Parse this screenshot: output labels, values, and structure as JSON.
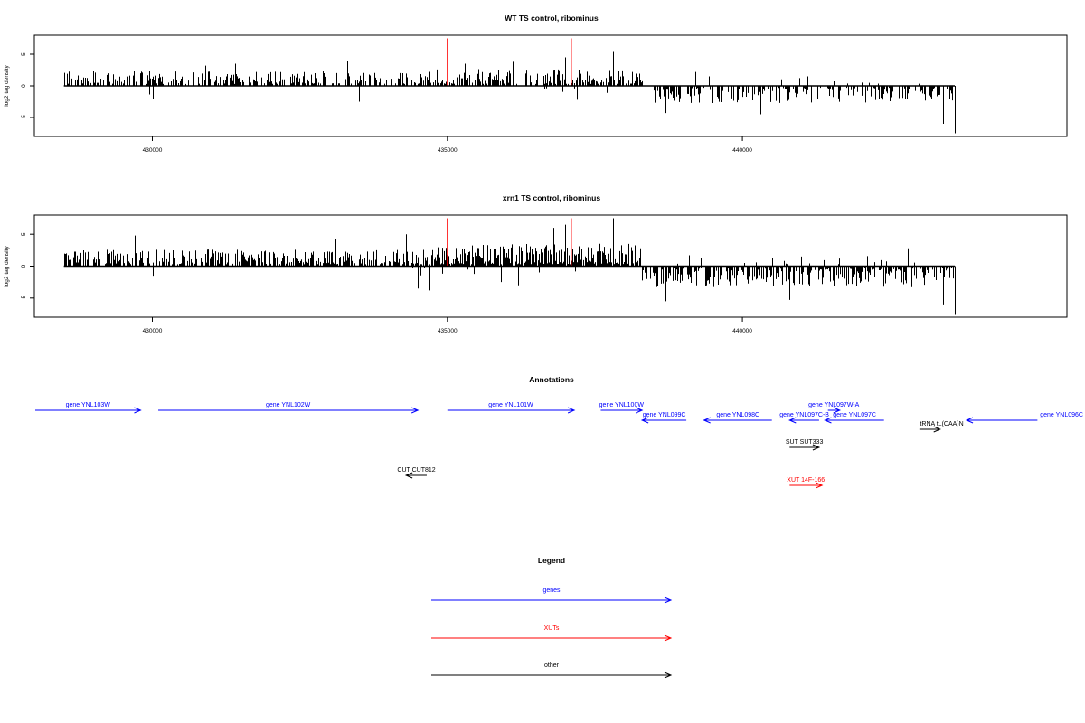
{
  "chart_data": [
    {
      "type": "bar",
      "title": "WT TS control, ribominus",
      "ylabel": "log2 tag density",
      "xlim": [
        428000,
        445500
      ],
      "ylim": [
        -8,
        8
      ],
      "x_ticks": [
        430000,
        435000,
        440000
      ],
      "x_tick_labels": [
        "430000",
        "435000",
        "440000"
      ],
      "y_ticks": [
        -5,
        0,
        5
      ],
      "y_tick_labels": [
        "-5",
        "0",
        "5"
      ],
      "baseline": {
        "x_start": 428500,
        "x_end": 443600,
        "y": 0,
        "color": "#000000"
      },
      "markers": [
        {
          "x": 435000,
          "y_from": 0,
          "y_to": 7.5,
          "color": "#ff0000"
        },
        {
          "x": 437100,
          "y_from": 0,
          "y_to": 7.5,
          "color": "#ff0000"
        }
      ],
      "series": [
        {
          "x_start": 428500,
          "x_end": 434800,
          "sign": 1,
          "density": 0.5,
          "amp": 2.0,
          "spikes": [
            [
              434200,
              4.5
            ],
            [
              433300,
              4.0
            ],
            [
              431400,
              3.5
            ],
            [
              430900,
              3.2
            ]
          ]
        },
        {
          "x_start": 429950,
          "x_end": 430000,
          "sign": -1,
          "density": 0.1,
          "amp": 2.0,
          "spikes": [
            [
              430000,
              -2.0
            ],
            [
              433500,
              -2.5
            ]
          ]
        },
        {
          "x_start": 434800,
          "x_end": 438300,
          "sign": 1,
          "density": 0.6,
          "amp": 2.4,
          "spikes": [
            [
              437800,
              5.5
            ],
            [
              437000,
              4.5
            ],
            [
              436100,
              3.8
            ],
            [
              435300,
              3.5
            ]
          ]
        },
        {
          "x_start": 436400,
          "x_end": 437200,
          "sign": -1,
          "density": 0.05,
          "amp": 1.5,
          "spikes": [
            [
              436600,
              -2.3
            ],
            [
              437200,
              -2.2
            ],
            [
              437700,
              -1.1
            ]
          ]
        },
        {
          "x_start": 438500,
          "x_end": 443600,
          "sign": -1,
          "density": 0.45,
          "amp": 2.5,
          "spikes": [
            [
              443600,
              -7.5
            ],
            [
              443400,
              -6.0
            ],
            [
              440300,
              -4.5
            ],
            [
              438700,
              -4.3
            ]
          ]
        },
        {
          "x_start": 439300,
          "x_end": 443000,
          "sign": 1,
          "density": 0.05,
          "amp": 1.2,
          "spikes": [
            [
              439200,
              2.2
            ],
            [
              441100,
              1.5
            ],
            [
              443000,
              1.1
            ]
          ]
        }
      ]
    },
    {
      "type": "bar",
      "title": "xrn1 TS control, ribominus",
      "ylabel": "log2 tag density",
      "xlim": [
        428000,
        445500
      ],
      "ylim": [
        -8,
        8
      ],
      "x_ticks": [
        430000,
        435000,
        440000
      ],
      "x_tick_labels": [
        "430000",
        "435000",
        "440000"
      ],
      "y_ticks": [
        -5,
        0,
        5
      ],
      "y_tick_labels": [
        "-5",
        "0",
        "5"
      ],
      "baseline": {
        "x_start": 428500,
        "x_end": 443600,
        "y": 0,
        "color": "#000000"
      },
      "markers": [
        {
          "x": 435000,
          "y_from": 0,
          "y_to": 7.5,
          "color": "#ff0000"
        },
        {
          "x": 437100,
          "y_from": 0,
          "y_to": 7.5,
          "color": "#ff0000"
        }
      ],
      "series": [
        {
          "x_start": 428500,
          "x_end": 434800,
          "sign": 1,
          "density": 0.65,
          "amp": 2.3,
          "spikes": [
            [
              434300,
              5.0
            ],
            [
              431500,
              4.5
            ],
            [
              429700,
              4.8
            ],
            [
              433100,
              4.2
            ]
          ]
        },
        {
          "x_start": 434300,
          "x_end": 435000,
          "sign": -1,
          "density": 0.15,
          "amp": 2.0,
          "spikes": [
            [
              434500,
              -3.5
            ],
            [
              434700,
              -3.8
            ],
            [
              430000,
              -1.5
            ]
          ]
        },
        {
          "x_start": 434800,
          "x_end": 438300,
          "sign": 1,
          "density": 0.9,
          "amp": 3.2,
          "spikes": [
            [
              437800,
              7.5
            ],
            [
              436800,
              6.0
            ],
            [
              435800,
              5.5
            ],
            [
              437000,
              6.5
            ]
          ]
        },
        {
          "x_start": 435200,
          "x_end": 437300,
          "sign": -1,
          "density": 0.1,
          "amp": 1.5,
          "spikes": [
            [
              436200,
              -3.0
            ],
            [
              435900,
              -2.5
            ]
          ]
        },
        {
          "x_start": 438300,
          "x_end": 443600,
          "sign": -1,
          "density": 0.6,
          "amp": 3.0,
          "spikes": [
            [
              443600,
              -7.5
            ],
            [
              443400,
              -6.0
            ],
            [
              438700,
              -5.5
            ],
            [
              440800,
              -5.3
            ]
          ]
        },
        {
          "x_start": 438500,
          "x_end": 443200,
          "sign": 1,
          "density": 0.08,
          "amp": 1.3,
          "spikes": [
            [
              439100,
              1.7
            ],
            [
              442800,
              2.8
            ],
            [
              441000,
              1.5
            ]
          ]
        }
      ]
    }
  ],
  "annotations_title": "Annotations",
  "annotations": [
    {
      "label": "gene YNL103W",
      "x_start": 428000,
      "x_end": 429800,
      "dir": "right",
      "row": 0,
      "color": "#0000ff"
    },
    {
      "label": "gene YNL102W",
      "x_start": 430100,
      "x_end": 434500,
      "dir": "right",
      "row": 0,
      "color": "#0000ff"
    },
    {
      "label": "gene YNL101W",
      "x_start": 435000,
      "x_end": 437150,
      "dir": "right",
      "row": 0,
      "color": "#0000ff"
    },
    {
      "label": "gene YNL100W",
      "x_start": 437600,
      "x_end": 438300,
      "dir": "right",
      "row": 0,
      "color": "#0000ff"
    },
    {
      "label": "gene YNL099C",
      "x_start": 438300,
      "x_end": 439050,
      "dir": "left",
      "row": 1,
      "color": "#0000ff"
    },
    {
      "label": "gene YNL098C",
      "x_start": 439350,
      "x_end": 440500,
      "dir": "left",
      "row": 1,
      "color": "#0000ff"
    },
    {
      "label": "gene YNL097C-B",
      "x_start": 440800,
      "x_end": 441300,
      "dir": "left",
      "row": 1,
      "color": "#0000ff"
    },
    {
      "label": "gene YNL097W-A",
      "x_start": 441450,
      "x_end": 441650,
      "dir": "right",
      "row": 2,
      "color": "#0000ff"
    },
    {
      "label": "gene YNL097C",
      "x_start": 441400,
      "x_end": 442400,
      "dir": "left",
      "row": 1,
      "color": "#0000ff"
    },
    {
      "label": "tRNA tL(CAA)N",
      "x_start": 443000,
      "x_end": 443350,
      "dir": "right",
      "row": 3,
      "color": "#000000"
    },
    {
      "label": "gene YNL096C",
      "x_start": 443800,
      "x_end": 445000,
      "dir": "left",
      "row": 4,
      "color": "#0000ff"
    },
    {
      "label": "SUT SUT333",
      "x_start": 440800,
      "x_end": 441300,
      "dir": "right",
      "row": 5,
      "color": "#000000"
    },
    {
      "label": "CUT CUT812",
      "x_start": 434300,
      "x_end": 434650,
      "dir": "left",
      "row": 6,
      "color": "#000000"
    },
    {
      "label": "XUT 14F-166",
      "x_start": 440800,
      "x_end": 441350,
      "dir": "right",
      "row": 7,
      "color": "#ff0000"
    }
  ],
  "legend_title": "Legend",
  "legend": [
    {
      "label": "genes",
      "color": "#0000ff"
    },
    {
      "label": "XUTs",
      "color": "#ff0000"
    },
    {
      "label": "other",
      "color": "#000000"
    }
  ]
}
